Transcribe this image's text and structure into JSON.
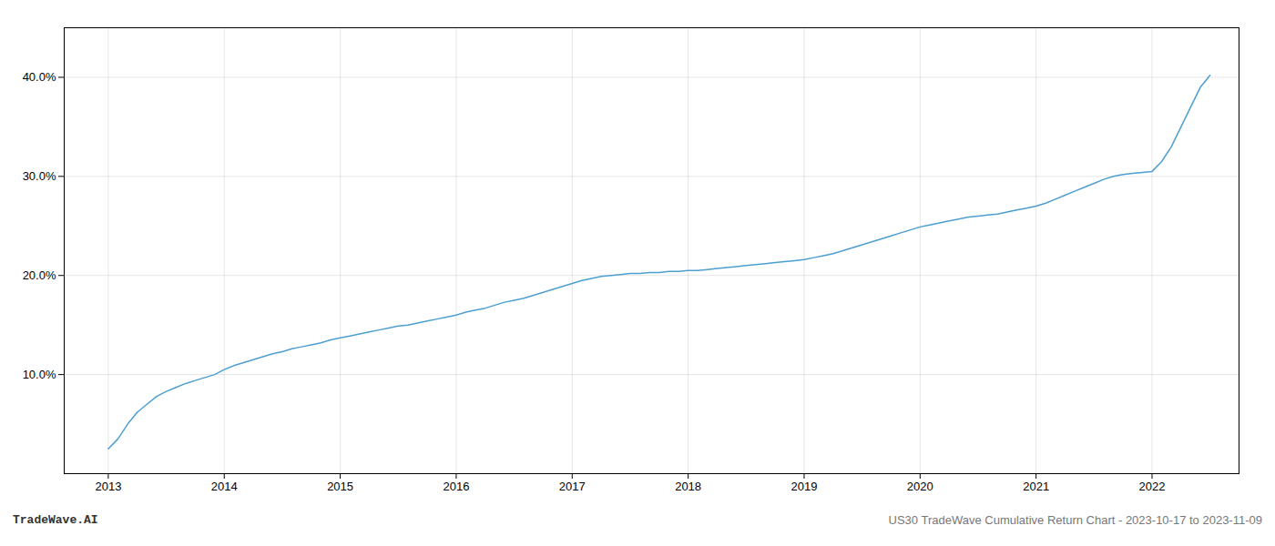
{
  "chart_data": {
    "type": "line",
    "x": [
      2013.0,
      2013.083,
      2013.167,
      2013.25,
      2013.333,
      2013.417,
      2013.5,
      2013.583,
      2013.667,
      2013.75,
      2013.833,
      2013.917,
      2014.0,
      2014.083,
      2014.167,
      2014.25,
      2014.333,
      2014.417,
      2014.5,
      2014.583,
      2014.667,
      2014.75,
      2014.833,
      2014.917,
      2015.0,
      2015.083,
      2015.167,
      2015.25,
      2015.333,
      2015.417,
      2015.5,
      2015.583,
      2015.667,
      2015.75,
      2015.833,
      2015.917,
      2016.0,
      2016.083,
      2016.167,
      2016.25,
      2016.333,
      2016.417,
      2016.5,
      2016.583,
      2016.667,
      2016.75,
      2016.833,
      2016.917,
      2017.0,
      2017.083,
      2017.167,
      2017.25,
      2017.333,
      2017.417,
      2017.5,
      2017.583,
      2017.667,
      2017.75,
      2017.833,
      2017.917,
      2018.0,
      2018.083,
      2018.167,
      2018.25,
      2018.333,
      2018.417,
      2018.5,
      2018.583,
      2018.667,
      2018.75,
      2018.833,
      2018.917,
      2019.0,
      2019.083,
      2019.167,
      2019.25,
      2019.333,
      2019.417,
      2019.5,
      2019.583,
      2019.667,
      2019.75,
      2019.833,
      2019.917,
      2020.0,
      2020.083,
      2020.167,
      2020.25,
      2020.333,
      2020.417,
      2020.5,
      2020.583,
      2020.667,
      2020.75,
      2020.833,
      2020.917,
      2021.0,
      2021.083,
      2021.167,
      2021.25,
      2021.333,
      2021.417,
      2021.5,
      2021.583,
      2021.667,
      2021.75,
      2021.833,
      2021.917,
      2022.0,
      2022.083,
      2022.167,
      2022.25,
      2022.333,
      2022.417,
      2022.5
    ],
    "values": [
      2.5,
      3.5,
      5.0,
      6.2,
      7.0,
      7.8,
      8.3,
      8.7,
      9.1,
      9.4,
      9.7,
      10.0,
      10.5,
      10.9,
      11.2,
      11.5,
      11.8,
      12.1,
      12.3,
      12.6,
      12.8,
      13.0,
      13.2,
      13.5,
      13.7,
      13.9,
      14.1,
      14.3,
      14.5,
      14.7,
      14.9,
      15.0,
      15.2,
      15.4,
      15.6,
      15.8,
      16.0,
      16.3,
      16.5,
      16.7,
      17.0,
      17.3,
      17.5,
      17.7,
      18.0,
      18.3,
      18.6,
      18.9,
      19.2,
      19.5,
      19.7,
      19.9,
      20.0,
      20.1,
      20.2,
      20.2,
      20.3,
      20.3,
      20.4,
      20.4,
      20.5,
      20.5,
      20.6,
      20.7,
      20.8,
      20.9,
      21.0,
      21.1,
      21.2,
      21.3,
      21.4,
      21.5,
      21.6,
      21.8,
      22.0,
      22.2,
      22.5,
      22.8,
      23.1,
      23.4,
      23.7,
      24.0,
      24.3,
      24.6,
      24.9,
      25.1,
      25.3,
      25.5,
      25.7,
      25.9,
      26.0,
      26.1,
      26.2,
      26.4,
      26.6,
      26.8,
      27.0,
      27.3,
      27.7,
      28.1,
      28.5,
      28.9,
      29.3,
      29.7,
      30.0,
      30.2,
      30.3,
      30.4,
      30.5,
      31.5,
      33.0,
      35.0,
      37.0,
      39.0,
      40.2
    ],
    "color": "#4e9fd1",
    "xlim": [
      2012.62,
      2022.75
    ],
    "xticks": [
      2013,
      2014,
      2015,
      2016,
      2017,
      2018,
      2019,
      2020,
      2021,
      2022
    ],
    "ylim": [
      0,
      45
    ],
    "yticks": [
      {
        "value": 10.0,
        "label": "10.0%"
      },
      {
        "value": 20.0,
        "label": "20.0%"
      },
      {
        "value": 30.0,
        "label": "30.0%"
      },
      {
        "value": 40.0,
        "label": "40.0%"
      }
    ],
    "grid": true,
    "annotations": [
      "TradeWave.AI",
      "US30 TradeWave Cumulative Return Chart - 2023-10-17 to 2023-11-09"
    ]
  }
}
